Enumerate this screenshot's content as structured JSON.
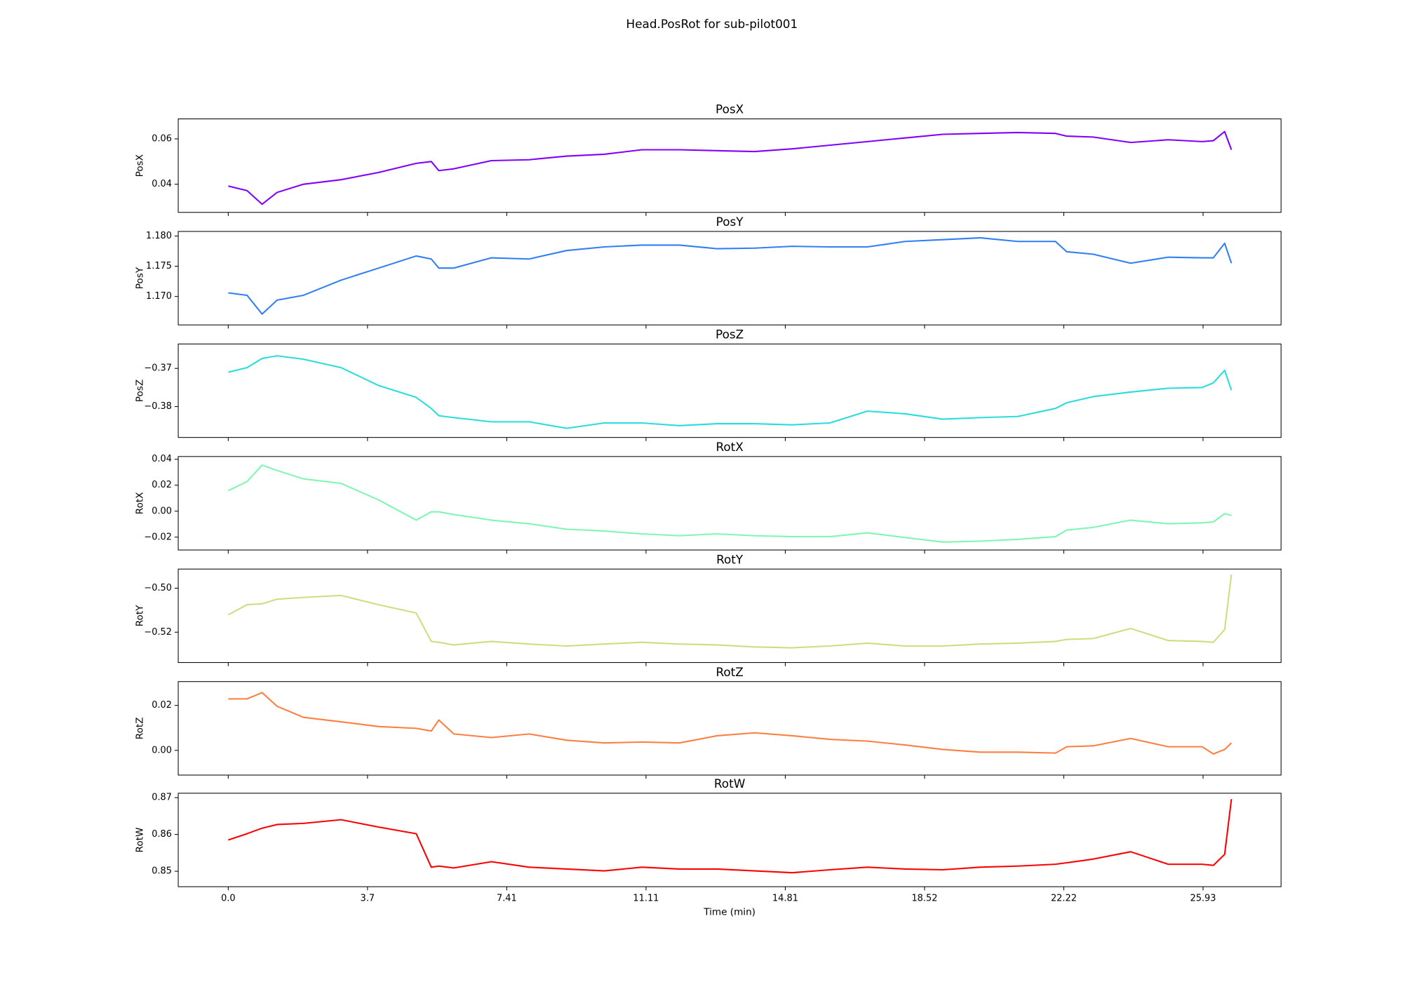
{
  "title": "Head.PosRot for sub-pilot001",
  "chart_data": [
    {
      "type": "line",
      "title": "PosX",
      "ylabel": "PosX",
      "color": "#8000ff",
      "x": [
        0,
        0.5,
        0.9,
        1.3,
        2,
        3,
        4,
        5,
        5.4,
        5.6,
        6,
        7,
        8,
        9,
        10,
        11,
        12,
        13,
        14,
        15,
        16,
        17,
        18,
        19,
        20,
        21,
        22,
        22.3,
        23,
        24,
        25,
        25.9,
        26.2,
        26.5,
        26.68
      ],
      "values": [
        0.0392,
        0.0372,
        0.0312,
        0.0364,
        0.04,
        0.042,
        0.0452,
        0.0492,
        0.05,
        0.046,
        0.0468,
        0.0504,
        0.0508,
        0.0524,
        0.0532,
        0.0552,
        0.0552,
        0.0548,
        0.0544,
        0.0556,
        0.0572,
        0.0588,
        0.0604,
        0.062,
        0.0624,
        0.0628,
        0.0624,
        0.0612,
        0.0608,
        0.0584,
        0.0596,
        0.0588,
        0.0592,
        0.0632,
        0.0552
      ],
      "xlim": [
        -1.33,
        28.0
      ],
      "ylim": [
        0.0276,
        0.0688
      ],
      "yticks": [
        0.04,
        0.06
      ]
    },
    {
      "type": "line",
      "title": "PosY",
      "ylabel": "PosY",
      "color": "#2f7ff6",
      "x": [
        0,
        0.5,
        0.9,
        1.3,
        2,
        3,
        4,
        5,
        5.4,
        5.6,
        6,
        7,
        8,
        9,
        10,
        11,
        12,
        13,
        14,
        15,
        16,
        17,
        18,
        19,
        20,
        21,
        22,
        22.3,
        23,
        24,
        25,
        25.9,
        26.2,
        26.5,
        26.68
      ],
      "values": [
        1.1706,
        1.1702,
        1.1671,
        1.1694,
        1.1702,
        1.1727,
        1.1747,
        1.1767,
        1.1762,
        1.1747,
        1.1747,
        1.1764,
        1.1762,
        1.1776,
        1.1782,
        1.1785,
        1.1785,
        1.1779,
        1.178,
        1.1783,
        1.1782,
        1.1782,
        1.1791,
        1.1794,
        1.1797,
        1.1791,
        1.1791,
        1.1774,
        1.177,
        1.1755,
        1.1765,
        1.1764,
        1.1764,
        1.1788,
        1.1755
      ],
      "xlim": [
        -1.33,
        28.0
      ],
      "ylim": [
        1.1653,
        1.18076
      ],
      "yticks": [
        {
          "value": 1.17,
          "label": "1.170"
        },
        1.175,
        {
          "value": 1.18,
          "label": "1.180"
        }
      ]
    },
    {
      "type": "line",
      "title": "PosZ",
      "ylabel": "PosZ",
      "color": "#2adcdc",
      "x": [
        0,
        0.5,
        0.9,
        1.3,
        2,
        3,
        4,
        5,
        5.4,
        5.6,
        6,
        7,
        8,
        9,
        10,
        11,
        12,
        13,
        14,
        15,
        16,
        17,
        18,
        19,
        20,
        21,
        22,
        22.3,
        23,
        24,
        25,
        25.9,
        26.2,
        26.5,
        26.68
      ],
      "values": [
        -0.371,
        -0.3698,
        -0.3674,
        -0.3667,
        -0.3676,
        -0.3698,
        -0.3745,
        -0.3776,
        -0.3805,
        -0.3824,
        -0.3829,
        -0.384,
        -0.384,
        -0.3857,
        -0.3843,
        -0.3843,
        -0.385,
        -0.3845,
        -0.3845,
        -0.3848,
        -0.3843,
        -0.3812,
        -0.3819,
        -0.3833,
        -0.3829,
        -0.3826,
        -0.3805,
        -0.379,
        -0.3774,
        -0.3762,
        -0.3752,
        -0.375,
        -0.3738,
        -0.3705,
        -0.3757
      ],
      "xlim": [
        -1.33,
        28.0
      ],
      "ylim": [
        -0.3881,
        -0.3636
      ],
      "yticks": [
        {
          "value": -0.38,
          "label": "−0.38"
        },
        {
          "value": -0.37,
          "label": "−0.37"
        }
      ]
    },
    {
      "type": "line",
      "title": "RotX",
      "ylabel": "RotX",
      "color": "#80f5b4",
      "x": [
        0,
        0.5,
        0.9,
        1.3,
        2,
        3,
        4,
        5,
        5.4,
        5.6,
        6,
        7,
        8,
        9,
        10,
        11,
        12,
        13,
        14,
        15,
        16,
        17,
        18,
        19,
        20,
        21,
        22,
        22.3,
        23,
        24,
        25,
        25.9,
        26.2,
        26.5,
        26.68
      ],
      "values": [
        0.0158,
        0.0228,
        0.0355,
        0.0313,
        0.0249,
        0.0214,
        0.0087,
        -0.0069,
        -0.0005,
        -0.0005,
        -0.0026,
        -0.0069,
        -0.0097,
        -0.0139,
        -0.0153,
        -0.0175,
        -0.0189,
        -0.0175,
        -0.0189,
        -0.0196,
        -0.0196,
        -0.0167,
        -0.0203,
        -0.0238,
        -0.0231,
        -0.0217,
        -0.0196,
        -0.0146,
        -0.0125,
        -0.0069,
        -0.0097,
        -0.009,
        -0.0083,
        -0.0019,
        -0.0033
      ],
      "xlim": [
        -1.33,
        28.0
      ],
      "ylim": [
        -0.0299,
        0.0421
      ],
      "yticks": [
        {
          "value": -0.02,
          "label": "−0.02"
        },
        {
          "value": 0,
          "label": "0.00"
        },
        0.02,
        0.04
      ]
    },
    {
      "type": "line",
      "title": "RotY",
      "ylabel": "RotY",
      "color": "#d0dc80",
      "x": [
        0,
        0.5,
        0.9,
        1.3,
        2,
        3,
        4,
        5,
        5.4,
        5.6,
        6,
        7,
        8,
        9,
        10,
        11,
        12,
        13,
        14,
        15,
        16,
        17,
        18,
        19,
        20,
        21,
        22,
        22.3,
        23,
        24,
        25,
        25.9,
        26.2,
        26.5,
        26.68
      ],
      "values": [
        -0.5121,
        -0.5075,
        -0.5071,
        -0.505,
        -0.5042,
        -0.5033,
        -0.5075,
        -0.5113,
        -0.5242,
        -0.5246,
        -0.5258,
        -0.5242,
        -0.5254,
        -0.5263,
        -0.5254,
        -0.5246,
        -0.5254,
        -0.5258,
        -0.5267,
        -0.5271,
        -0.5263,
        -0.525,
        -0.5263,
        -0.5263,
        -0.5254,
        -0.525,
        -0.5242,
        -0.5233,
        -0.5229,
        -0.5183,
        -0.5238,
        -0.5242,
        -0.5246,
        -0.5188,
        -0.4938
      ],
      "xlim": [
        -1.33,
        28.0
      ],
      "ylim": [
        -0.5338,
        -0.4913
      ],
      "yticks": [
        {
          "value": -0.52,
          "label": "−0.52"
        },
        {
          "value": -0.5,
          "label": "−0.50"
        }
      ]
    },
    {
      "type": "line",
      "title": "RotZ",
      "ylabel": "RotZ",
      "color": "#ff7f42",
      "x": [
        0,
        0.5,
        0.9,
        1.3,
        2,
        3,
        4,
        5,
        5.4,
        5.6,
        6,
        7,
        8,
        9,
        10,
        11,
        12,
        13,
        14,
        15,
        16,
        17,
        18,
        19,
        20,
        21,
        22,
        22.3,
        23,
        24,
        25,
        25.9,
        26.2,
        26.5,
        26.68
      ],
      "values": [
        0.0229,
        0.0229,
        0.0257,
        0.0196,
        0.0147,
        0.0127,
        0.0106,
        0.0098,
        0.0086,
        0.0135,
        0.0073,
        0.0057,
        0.0073,
        0.0045,
        0.0033,
        0.0037,
        0.0033,
        0.0065,
        0.0078,
        0.0065,
        0.0049,
        0.0041,
        0.0024,
        0.0004,
        -0.0008,
        -0.0008,
        -0.0012,
        0.0016,
        0.002,
        0.0053,
        0.0016,
        0.0016,
        -0.0016,
        0.0004,
        0.0033
      ],
      "xlim": [
        -1.33,
        28.0
      ],
      "ylim": [
        -0.011,
        0.0306
      ],
      "yticks": [
        {
          "value": 0,
          "label": "0.00"
        },
        0.02
      ]
    },
    {
      "type": "line",
      "title": "RotW",
      "ylabel": "RotW",
      "xlabel": "Time (min)",
      "color": "#ff0000",
      "x": [
        0,
        0.5,
        0.9,
        1.3,
        2,
        3,
        4,
        5,
        5.4,
        5.6,
        6,
        7,
        8,
        9,
        10,
        11,
        12,
        13,
        14,
        15,
        16,
        17,
        18,
        19,
        20,
        21,
        22,
        22.3,
        23,
        24,
        25,
        25.9,
        26.2,
        26.5,
        26.68
      ],
      "values": [
        0.8585,
        0.8602,
        0.8617,
        0.8627,
        0.863,
        0.864,
        0.862,
        0.8602,
        0.8511,
        0.8514,
        0.8509,
        0.8526,
        0.8511,
        0.8506,
        0.8501,
        0.8511,
        0.8506,
        0.8506,
        0.8501,
        0.8496,
        0.8504,
        0.8511,
        0.8506,
        0.8504,
        0.8511,
        0.8514,
        0.8519,
        0.8523,
        0.8533,
        0.8553,
        0.8519,
        0.8519,
        0.8516,
        0.8546,
        0.8696
      ],
      "xlim": [
        -1.33,
        28.0
      ],
      "ylim": [
        0.8458,
        0.8712
      ],
      "yticks": [
        0.85,
        0.86,
        0.87
      ],
      "xticks": [
        {
          "value": 0,
          "label": "0.0"
        },
        {
          "value": 3.704,
          "label": "3.7"
        },
        {
          "value": 7.407,
          "label": "7.41"
        },
        {
          "value": 11.111,
          "label": "11.11"
        },
        {
          "value": 14.815,
          "label": "14.81"
        },
        {
          "value": 18.519,
          "label": "18.52"
        },
        {
          "value": 22.222,
          "label": "22.22"
        },
        {
          "value": 25.926,
          "label": "25.93"
        }
      ]
    }
  ]
}
